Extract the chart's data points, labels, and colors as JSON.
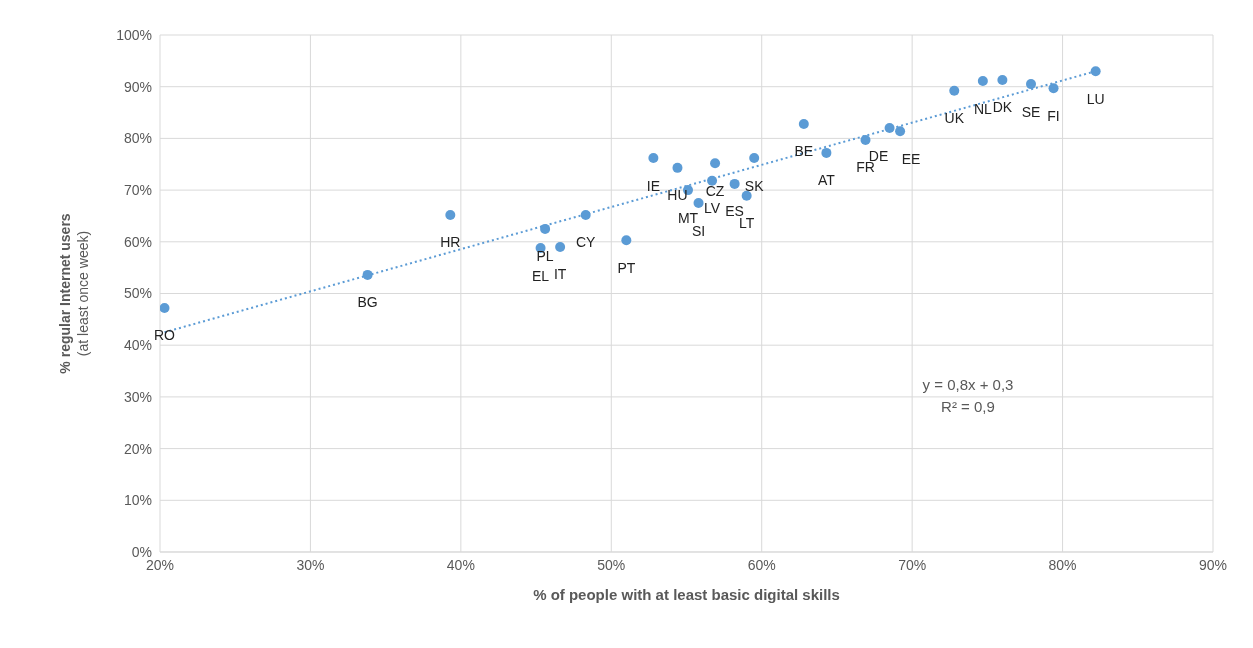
{
  "chart_data": {
    "type": "scatter",
    "xlabel": "% of people with at least basic digital skills",
    "ylabel": "% regular Internet users\n(at least once week)",
    "xlim": [
      20,
      90
    ],
    "ylim": [
      0,
      100
    ],
    "xticks": [
      {
        "value": 20,
        "label": "20%"
      },
      {
        "value": 30,
        "label": "30%"
      },
      {
        "value": 40,
        "label": "40%"
      },
      {
        "value": 50,
        "label": "50%"
      },
      {
        "value": 60,
        "label": "60%"
      },
      {
        "value": 70,
        "label": "70%"
      },
      {
        "value": 80,
        "label": "80%"
      },
      {
        "value": 90,
        "label": "90%"
      }
    ],
    "yticks": [
      {
        "value": 0,
        "label": "0%"
      },
      {
        "value": 10,
        "label": "10%"
      },
      {
        "value": 20,
        "label": "20%"
      },
      {
        "value": 30,
        "label": "30%"
      },
      {
        "value": 40,
        "label": "40%"
      },
      {
        "value": 50,
        "label": "50%"
      },
      {
        "value": 60,
        "label": "60%"
      },
      {
        "value": 70,
        "label": "70%"
      },
      {
        "value": 80,
        "label": "80%"
      },
      {
        "value": 90,
        "label": "90%"
      },
      {
        "value": 100,
        "label": "100%"
      }
    ],
    "grid": true,
    "legend": false,
    "series": [
      {
        "color": "#5b9bd5",
        "marker": "circle",
        "x": [
          20.3,
          33.8,
          39.3,
          45.6,
          45.3,
          46.6,
          48.3,
          51.0,
          52.8,
          54.4,
          55.1,
          56.9,
          56.7,
          55.8,
          58.2,
          59.0,
          59.5,
          62.8,
          64.3,
          66.9,
          68.5,
          69.2,
          72.8,
          74.7,
          76.0,
          77.9,
          79.4,
          82.2
        ],
        "values": [
          47.2,
          53.6,
          65.2,
          62.5,
          58.8,
          59.0,
          65.2,
          60.3,
          76.2,
          74.3,
          70.0,
          75.2,
          71.8,
          67.5,
          71.2,
          68.9,
          76.2,
          82.8,
          77.2,
          79.7,
          82.0,
          81.4,
          89.2,
          91.1,
          91.3,
          90.5,
          89.7,
          93.0
        ],
        "value_labels": [
          "RO",
          "BG",
          "HR",
          "PL",
          "EL",
          "IT",
          "CY",
          "PT",
          "IE",
          "HU",
          "MT",
          "CZ",
          "LV",
          "SI",
          "ES",
          "LT",
          "SK",
          "BE",
          "AT",
          "FR",
          "DE",
          "EE",
          "UK",
          "NL",
          "DK",
          "SE",
          "FI",
          "LU"
        ]
      },
      {
        "type": "line",
        "color": "#5b9bd5",
        "line_style": "dotted",
        "marker": "none",
        "x": [
          20.3,
          82.2
        ],
        "values": [
          42.5,
          93.0
        ]
      }
    ],
    "annotations": [
      "y = 0,8x + 0,3",
      "R² = 0,9"
    ]
  }
}
